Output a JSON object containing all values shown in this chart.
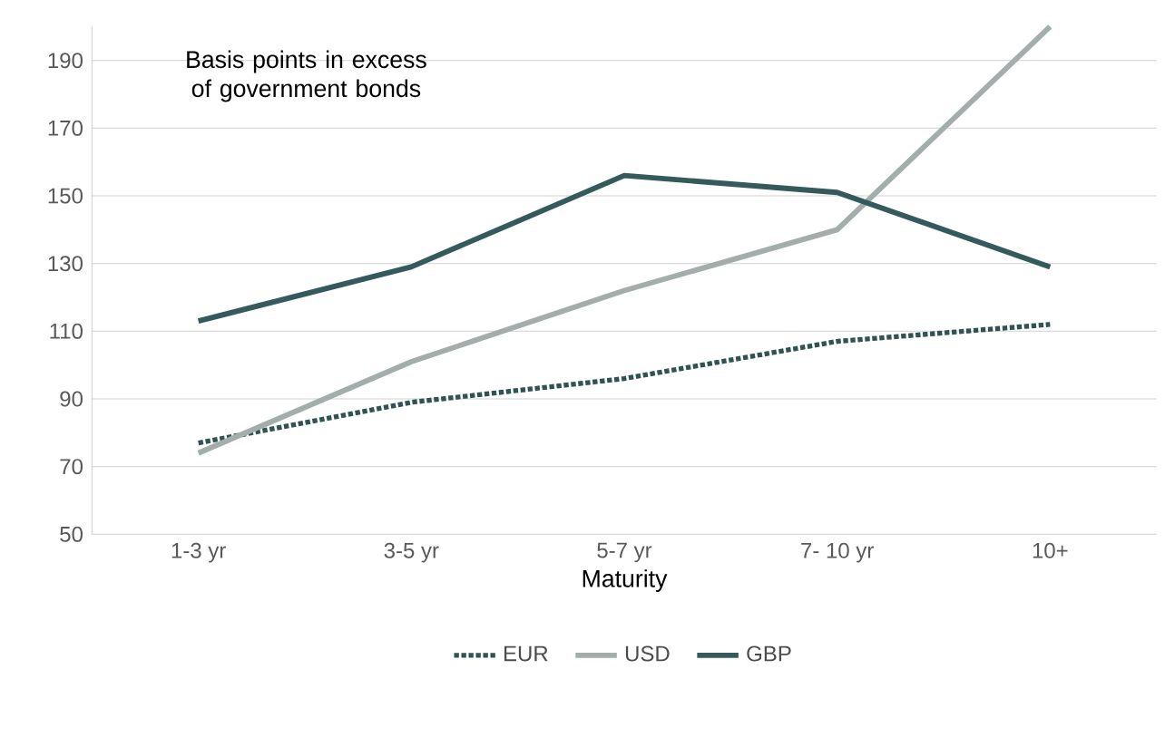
{
  "chart_data": {
    "type": "line",
    "ylabel": "Basis points in excess of government bonds",
    "xlabel": "Maturity",
    "categories": [
      "1-3 yr",
      "3-5 yr",
      "5-7 yr",
      "7- 10 yr",
      "10+"
    ],
    "series": [
      {
        "name": "EUR",
        "color": "#2f5252",
        "line_style": "dotted",
        "values": [
          77,
          89,
          96,
          107,
          112
        ]
      },
      {
        "name": "USD",
        "color": "#a3adab",
        "line_style": "solid",
        "values": [
          74,
          101,
          122,
          140,
          200
        ]
      },
      {
        "name": "GBP",
        "color": "#345a5c",
        "line_style": "solid",
        "values": [
          113,
          129,
          156,
          151,
          129
        ]
      }
    ],
    "ylim": [
      50,
      200
    ],
    "yticks": [
      50,
      70,
      90,
      110,
      130,
      150,
      170,
      190
    ],
    "grid": "y",
    "legend": "bottom",
    "marker": "none"
  }
}
